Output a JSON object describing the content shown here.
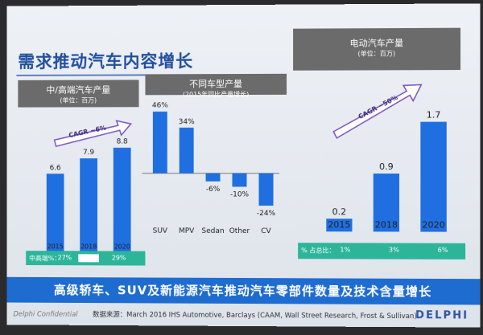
{
  "slide_title": "需求推动汽车内容增长",
  "panels": {
    "left": {
      "title": "中/高端汽车产量",
      "subtitle": "(单位：百万)",
      "cagr": "CAGR ~6%"
    },
    "middle": {
      "title": "不同车型产量",
      "subtitle": "(2015年同比产量增长)"
    },
    "right": {
      "title": "电动汽车产量",
      "subtitle": "(单位：百万)",
      "cagr": "CAGR ~50%"
    }
  },
  "share_bars": {
    "left": {
      "label": "中高端%：",
      "v1": "27%",
      "v2": "29%"
    },
    "right": {
      "label": "% 占总比：",
      "v1": "1%",
      "v2": "3%",
      "v3": "6%"
    }
  },
  "footer_banner": "高级轿车、SUV及新能源汽车推动汽车零部件数量及技术含量增长",
  "source": {
    "continental": "Delphi Confidential",
    "text": "数据来源：March 2016 IHS Automotive, Barclays (CAAM, Wall Street Research, Frost & Sullivan)"
  },
  "logo": "DELPHI",
  "colors": {
    "bar": "#1f6fe0",
    "green": "#2db59a",
    "panel_header": "#6b6b6b",
    "banner": "#1f6cd1"
  },
  "chart_data": [
    {
      "type": "bar",
      "title": "中/高端汽车产量",
      "subtitle": "(单位：百万)",
      "categories": [
        "2015",
        "2018",
        "2020"
      ],
      "values": [
        6.6,
        7.9,
        8.8
      ],
      "value_labels": [
        "6.6",
        "7.9",
        "8.8"
      ],
      "annotation": "CAGR ~6%",
      "ylim": [
        0,
        10
      ]
    },
    {
      "type": "bar",
      "title": "不同车型产量",
      "subtitle": "(2015年同比产量增长)",
      "categories": [
        "SUV",
        "MPV",
        "Sedan",
        "Other",
        "CV"
      ],
      "values": [
        46,
        34,
        -6,
        -10,
        -24
      ],
      "value_labels": [
        "46%",
        "34%",
        "-6%",
        "-10%",
        "-24%"
      ],
      "ylim": [
        -30,
        50
      ]
    },
    {
      "type": "bar",
      "title": "电动汽车产量",
      "subtitle": "(单位：百万)",
      "categories": [
        "2015",
        "2018",
        "2020"
      ],
      "values": [
        0.2,
        0.9,
        1.7
      ],
      "value_labels": [
        "0.2",
        "0.9",
        "1.7"
      ],
      "annotation": "CAGR ~50%",
      "ylim": [
        0,
        2
      ]
    }
  ]
}
